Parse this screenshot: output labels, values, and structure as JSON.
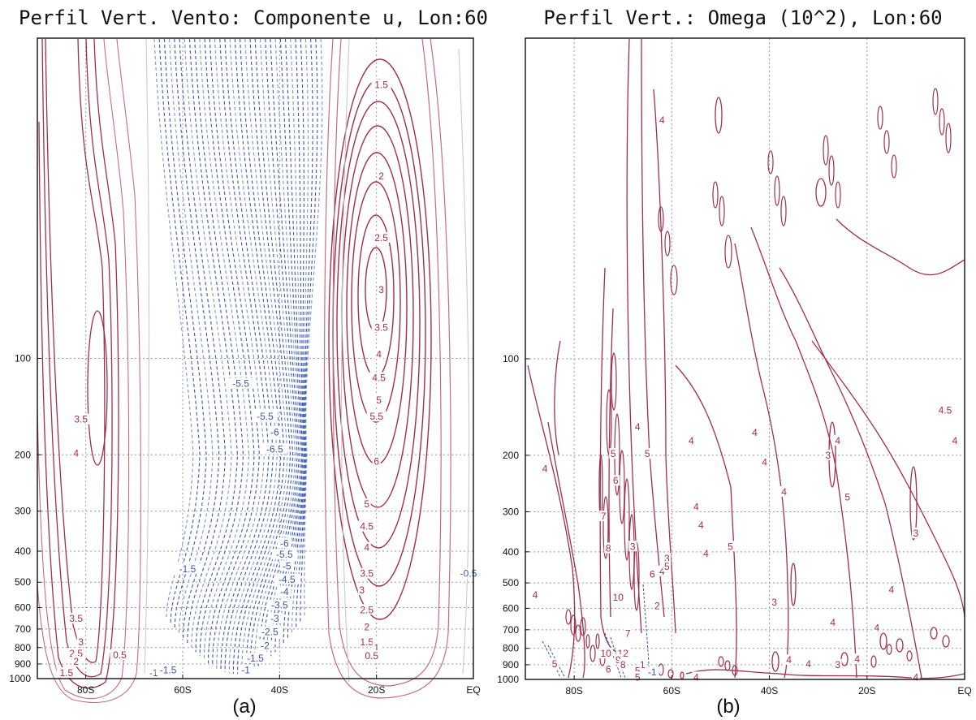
{
  "chart_data": [
    {
      "type": "contour",
      "title": "Perfil Vert. Vento: Componente u, Lon:60",
      "caption": "(a)",
      "x_ticks": [
        "80S",
        "60S",
        "40S",
        "20S",
        "EQ"
      ],
      "x_tick_values": [
        -80,
        -60,
        -40,
        -20,
        0
      ],
      "xlim": [
        -90,
        0
      ],
      "y_ticks": [
        "100",
        "200",
        "300",
        "400",
        "500",
        "600",
        "700",
        "800",
        "900",
        "1000"
      ],
      "y_tick_values": [
        100,
        200,
        300,
        400,
        500,
        600,
        700,
        800,
        900,
        1000
      ],
      "ylim": [
        1000,
        10
      ],
      "y_scale": "log",
      "grid": true,
      "positive_color": "#a0304a",
      "negative_color": "#3a56b0",
      "contour_labels": [
        {
          "text": "3.5",
          "lat": -81,
          "p": 155
        },
        {
          "text": "4",
          "lat": -82,
          "p": 198
        },
        {
          "text": "3.5",
          "lat": -82,
          "p": 650
        },
        {
          "text": "3",
          "lat": -81,
          "p": 770
        },
        {
          "text": "2.5",
          "lat": -82,
          "p": 835
        },
        {
          "text": "2",
          "lat": -82,
          "p": 885
        },
        {
          "text": "1.5",
          "lat": -84,
          "p": 960
        },
        {
          "text": "0.5",
          "lat": -73,
          "p": 845
        },
        {
          "text": "-1",
          "lat": -66,
          "p": 960
        },
        {
          "text": "-1.5",
          "lat": -63,
          "p": 940
        },
        {
          "text": "-1.5",
          "lat": -59,
          "p": 455
        },
        {
          "text": "-5.5",
          "lat": -48,
          "p": 120
        },
        {
          "text": "-5.5",
          "lat": -43,
          "p": 152
        },
        {
          "text": "-6",
          "lat": -41,
          "p": 170
        },
        {
          "text": "-6.5",
          "lat": -41,
          "p": 192
        },
        {
          "text": "-6",
          "lat": -39,
          "p": 378
        },
        {
          "text": "-5.5",
          "lat": -39,
          "p": 410
        },
        {
          "text": "-5",
          "lat": -38.5,
          "p": 445
        },
        {
          "text": "-4.5",
          "lat": -38.5,
          "p": 490
        },
        {
          "text": "-4",
          "lat": -39,
          "p": 535
        },
        {
          "text": "-3.5",
          "lat": -40,
          "p": 590
        },
        {
          "text": "-3",
          "lat": -41,
          "p": 650
        },
        {
          "text": "-2.5",
          "lat": -42,
          "p": 715
        },
        {
          "text": "-2",
          "lat": -43,
          "p": 790
        },
        {
          "text": "-1.5",
          "lat": -45,
          "p": 865
        },
        {
          "text": "-1",
          "lat": -47,
          "p": 940
        },
        {
          "text": "1.5",
          "lat": -19,
          "p": 14
        },
        {
          "text": "2",
          "lat": -19,
          "p": 27
        },
        {
          "text": "2.5",
          "lat": -19,
          "p": 42
        },
        {
          "text": "3",
          "lat": -19,
          "p": 61
        },
        {
          "text": "3.5",
          "lat": -19,
          "p": 80
        },
        {
          "text": "4",
          "lat": -19.5,
          "p": 97
        },
        {
          "text": "4.5",
          "lat": -19.5,
          "p": 115
        },
        {
          "text": "5",
          "lat": -19.5,
          "p": 135
        },
        {
          "text": "5.5",
          "lat": -20,
          "p": 152
        },
        {
          "text": "6",
          "lat": -20,
          "p": 210
        },
        {
          "text": "5",
          "lat": -22,
          "p": 285
        },
        {
          "text": "4.5",
          "lat": -22,
          "p": 335
        },
        {
          "text": "4",
          "lat": -22,
          "p": 390
        },
        {
          "text": "3.5",
          "lat": -22,
          "p": 470
        },
        {
          "text": "3",
          "lat": -23,
          "p": 530
        },
        {
          "text": "2.5",
          "lat": -22,
          "p": 610
        },
        {
          "text": "2",
          "lat": -22,
          "p": 690
        },
        {
          "text": "1.5",
          "lat": -22,
          "p": 770
        },
        {
          "text": "1",
          "lat": -20,
          "p": 800
        },
        {
          "text": "0.5",
          "lat": -21,
          "p": 850
        },
        {
          "text": "-0.5",
          "lat": -1,
          "p": 470
        }
      ]
    },
    {
      "type": "contour",
      "title": "Perfil Vert.: Omega (10^2), Lon:60",
      "caption": "(b)",
      "x_ticks": [
        "80S",
        "60S",
        "40S",
        "20S",
        "EQ"
      ],
      "x_tick_values": [
        -80,
        -60,
        -40,
        -20,
        0
      ],
      "xlim": [
        -90,
        0
      ],
      "y_ticks": [
        "100",
        "200",
        "300",
        "400",
        "500",
        "600",
        "700",
        "800",
        "900",
        "1000"
      ],
      "y_tick_values": [
        100,
        200,
        300,
        400,
        500,
        600,
        700,
        800,
        900,
        1000
      ],
      "ylim": [
        1000,
        10
      ],
      "y_scale": "log",
      "grid": true,
      "positive_color": "#a0304a",
      "negative_color": "#3a56b0",
      "contour_labels": [
        {
          "text": "4",
          "lat": -62,
          "p": 18
        },
        {
          "text": "4",
          "lat": -86,
          "p": 220
        },
        {
          "text": "4",
          "lat": -67,
          "p": 163
        },
        {
          "text": "5",
          "lat": -72,
          "p": 198
        },
        {
          "text": "5",
          "lat": -65,
          "p": 198
        },
        {
          "text": "6",
          "lat": -71.5,
          "p": 240
        },
        {
          "text": "7",
          "lat": -74,
          "p": 310
        },
        {
          "text": "8",
          "lat": -73,
          "p": 390
        },
        {
          "text": "3",
          "lat": -68,
          "p": 385
        },
        {
          "text": "3",
          "lat": -61,
          "p": 420
        },
        {
          "text": "6",
          "lat": -64,
          "p": 470
        },
        {
          "text": "4",
          "lat": -62,
          "p": 460
        },
        {
          "text": "5",
          "lat": -61,
          "p": 445
        },
        {
          "text": "10",
          "lat": -71,
          "p": 555
        },
        {
          "text": "2",
          "lat": -63,
          "p": 590
        },
        {
          "text": "4",
          "lat": -88,
          "p": 545
        },
        {
          "text": "7",
          "lat": -69,
          "p": 720
        },
        {
          "text": "10",
          "lat": -73.5,
          "p": 830
        },
        {
          "text": "12",
          "lat": -70,
          "p": 830
        },
        {
          "text": "9",
          "lat": -71,
          "p": 870
        },
        {
          "text": "8",
          "lat": -70,
          "p": 900
        },
        {
          "text": "1",
          "lat": -66,
          "p": 900
        },
        {
          "text": "5",
          "lat": -84,
          "p": 895
        },
        {
          "text": "6",
          "lat": -73,
          "p": 930
        },
        {
          "text": "-1",
          "lat": -64,
          "p": 950
        },
        {
          "text": "5",
          "lat": -67,
          "p": 940
        },
        {
          "text": "5",
          "lat": -67,
          "p": 985
        },
        {
          "text": "4",
          "lat": -55,
          "p": 985
        },
        {
          "text": "4",
          "lat": -56,
          "p": 180
        },
        {
          "text": "4",
          "lat": -43,
          "p": 170
        },
        {
          "text": "4",
          "lat": -41,
          "p": 210
        },
        {
          "text": "4",
          "lat": -55,
          "p": 290
        },
        {
          "text": "4",
          "lat": -54,
          "p": 330
        },
        {
          "text": "4",
          "lat": -37,
          "p": 260
        },
        {
          "text": "4",
          "lat": -53,
          "p": 405
        },
        {
          "text": "5",
          "lat": -48,
          "p": 385
        },
        {
          "text": "3",
          "lat": -28,
          "p": 200
        },
        {
          "text": "4",
          "lat": -26,
          "p": 180
        },
        {
          "text": "5",
          "lat": -24,
          "p": 270
        },
        {
          "text": "3",
          "lat": -39,
          "p": 575
        },
        {
          "text": "3",
          "lat": -10,
          "p": 350
        },
        {
          "text": "4",
          "lat": -15,
          "p": 525
        },
        {
          "text": "4",
          "lat": -27,
          "p": 665
        },
        {
          "text": "4",
          "lat": -18,
          "p": 690
        },
        {
          "text": "4",
          "lat": -36,
          "p": 870
        },
        {
          "text": "4",
          "lat": -32,
          "p": 895
        },
        {
          "text": "3",
          "lat": -26,
          "p": 900
        },
        {
          "text": "4",
          "lat": -22,
          "p": 865
        },
        {
          "text": "4",
          "lat": -10,
          "p": 985
        },
        {
          "text": "4",
          "lat": -2,
          "p": 180
        },
        {
          "text": "4.5",
          "lat": -4,
          "p": 145
        }
      ]
    }
  ]
}
